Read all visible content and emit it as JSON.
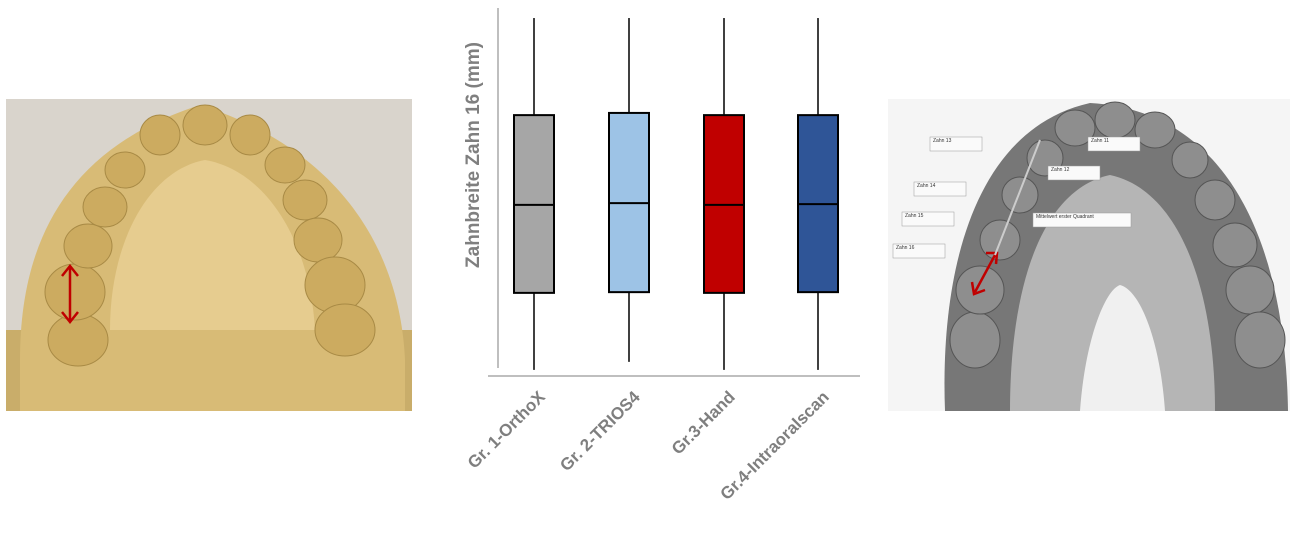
{
  "chart_data": {
    "type": "box",
    "ylabel": "Zahnbreite Zahn 16 (mm)",
    "categories": [
      "Gr. 1-OrthoX",
      "Gr. 2-TRIOS4",
      "Gr.3-Hand",
      "Gr.4-Intraoralscan"
    ],
    "colors": [
      "#a6a6a6",
      "#9dc3e6",
      "#c00000",
      "#2f5597"
    ],
    "min": [
      1.4,
      3.6,
      1.4,
      1.4
    ],
    "q1": [
      22.5,
      22.7,
      22.5,
      22.7
    ],
    "median": [
      46.6,
      47.1,
      46.6,
      46.8
    ],
    "q3": [
      71.2,
      71.8,
      71.2,
      71.2
    ],
    "max": [
      97.8,
      97.8,
      97.8,
      97.8
    ],
    "ylim": [
      0,
      100
    ]
  },
  "scan_labels": [
    "Zahn 13",
    "Zahn 11",
    "Zahn 12",
    "Zahn 14",
    "Zahn 15",
    "Zahn 16",
    "Mittelwert erster Quadrant"
  ]
}
